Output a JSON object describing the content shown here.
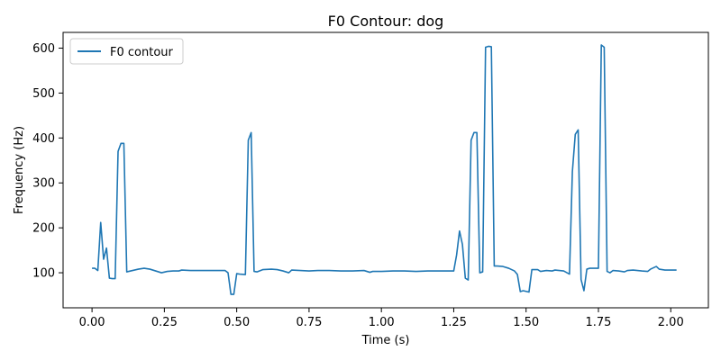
{
  "chart_data": {
    "type": "line",
    "title": "F0 Contour: dog",
    "xlabel": "Time (s)",
    "ylabel": "Frequency (Hz)",
    "xlim": [
      -0.1,
      2.13
    ],
    "ylim": [
      22,
      635
    ],
    "xticks": [
      0.0,
      0.25,
      0.5,
      0.75,
      1.0,
      1.25,
      1.5,
      1.75,
      2.0
    ],
    "xtick_labels": [
      "0.00",
      "0.25",
      "0.50",
      "0.75",
      "1.00",
      "1.25",
      "1.50",
      "1.75",
      "2.00"
    ],
    "yticks": [
      100,
      200,
      300,
      400,
      500,
      600
    ],
    "ytick_labels": [
      "100",
      "200",
      "300",
      "400",
      "500",
      "600"
    ],
    "grid": false,
    "legend_position": "top-left",
    "series": [
      {
        "name": "F0 contour",
        "color": "#1f77b4",
        "points": [
          [
            0.0,
            110
          ],
          [
            0.01,
            110
          ],
          [
            0.02,
            105
          ],
          [
            0.03,
            212
          ],
          [
            0.04,
            130
          ],
          [
            0.05,
            155
          ],
          [
            0.06,
            88
          ],
          [
            0.07,
            87
          ],
          [
            0.08,
            87
          ],
          [
            0.09,
            370
          ],
          [
            0.1,
            388
          ],
          [
            0.11,
            388
          ],
          [
            0.12,
            102
          ],
          [
            0.14,
            105
          ],
          [
            0.16,
            108
          ],
          [
            0.18,
            110
          ],
          [
            0.2,
            108
          ],
          [
            0.22,
            104
          ],
          [
            0.24,
            100
          ],
          [
            0.26,
            103
          ],
          [
            0.28,
            104
          ],
          [
            0.3,
            104
          ],
          [
            0.31,
            106
          ],
          [
            0.34,
            105
          ],
          [
            0.38,
            105
          ],
          [
            0.42,
            105
          ],
          [
            0.46,
            105
          ],
          [
            0.47,
            100
          ],
          [
            0.48,
            52
          ],
          [
            0.49,
            52
          ],
          [
            0.5,
            98
          ],
          [
            0.51,
            97
          ],
          [
            0.53,
            96
          ],
          [
            0.54,
            395
          ],
          [
            0.55,
            412
          ],
          [
            0.56,
            103
          ],
          [
            0.57,
            102
          ],
          [
            0.59,
            107
          ],
          [
            0.62,
            108
          ],
          [
            0.64,
            107
          ],
          [
            0.66,
            104
          ],
          [
            0.68,
            100
          ],
          [
            0.69,
            106
          ],
          [
            0.72,
            105
          ],
          [
            0.75,
            104
          ],
          [
            0.78,
            105
          ],
          [
            0.82,
            105
          ],
          [
            0.86,
            104
          ],
          [
            0.9,
            104
          ],
          [
            0.94,
            105
          ],
          [
            0.95,
            103
          ],
          [
            0.96,
            101
          ],
          [
            0.97,
            103
          ],
          [
            1.0,
            103
          ],
          [
            1.04,
            104
          ],
          [
            1.08,
            104
          ],
          [
            1.12,
            103
          ],
          [
            1.16,
            104
          ],
          [
            1.2,
            104
          ],
          [
            1.25,
            104
          ],
          [
            1.26,
            140
          ],
          [
            1.27,
            193
          ],
          [
            1.28,
            163
          ],
          [
            1.29,
            88
          ],
          [
            1.3,
            84
          ],
          [
            1.31,
            395
          ],
          [
            1.32,
            412
          ],
          [
            1.33,
            412
          ],
          [
            1.34,
            100
          ],
          [
            1.35,
            102
          ],
          [
            1.36,
            602
          ],
          [
            1.37,
            604
          ],
          [
            1.38,
            603
          ],
          [
            1.39,
            115
          ],
          [
            1.4,
            115
          ],
          [
            1.42,
            114
          ],
          [
            1.44,
            110
          ],
          [
            1.46,
            104
          ],
          [
            1.47,
            96
          ],
          [
            1.48,
            58
          ],
          [
            1.49,
            60
          ],
          [
            1.51,
            57
          ],
          [
            1.52,
            107
          ],
          [
            1.54,
            107
          ],
          [
            1.55,
            103
          ],
          [
            1.57,
            105
          ],
          [
            1.59,
            104
          ],
          [
            1.6,
            106
          ],
          [
            1.63,
            104
          ],
          [
            1.65,
            97
          ],
          [
            1.66,
            325
          ],
          [
            1.67,
            408
          ],
          [
            1.68,
            418
          ],
          [
            1.69,
            85
          ],
          [
            1.7,
            60
          ],
          [
            1.71,
            108
          ],
          [
            1.72,
            110
          ],
          [
            1.74,
            110
          ],
          [
            1.75,
            110
          ],
          [
            1.76,
            607
          ],
          [
            1.77,
            602
          ],
          [
            1.78,
            103
          ],
          [
            1.79,
            100
          ],
          [
            1.8,
            105
          ],
          [
            1.82,
            104
          ],
          [
            1.84,
            102
          ],
          [
            1.85,
            105
          ],
          [
            1.87,
            106
          ],
          [
            1.9,
            104
          ],
          [
            1.92,
            103
          ],
          [
            1.93,
            108
          ],
          [
            1.95,
            114
          ],
          [
            1.96,
            108
          ],
          [
            1.98,
            106
          ],
          [
            2.0,
            106
          ],
          [
            2.02,
            106
          ]
        ]
      }
    ]
  }
}
